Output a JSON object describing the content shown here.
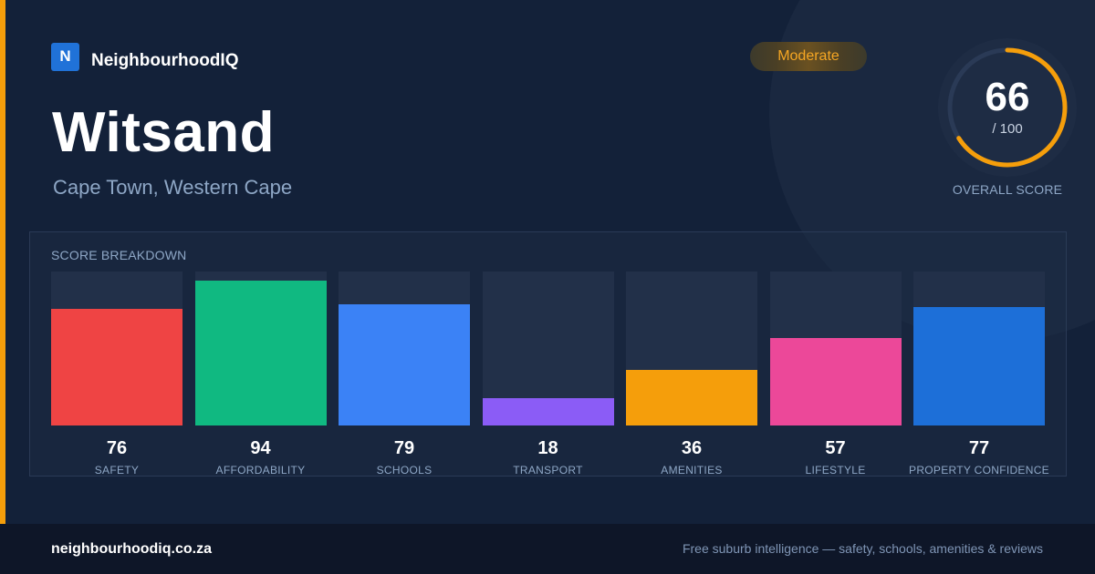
{
  "brand": {
    "logo_letter": "N",
    "name": "NeighbourhoodIQ"
  },
  "suburb": {
    "name": "Witsand",
    "location": "Cape Town, Western Cape"
  },
  "badge": {
    "label": "Moderate",
    "color": "#f5a623"
  },
  "overall": {
    "score": "66",
    "max": "/ 100",
    "label": "OVERALL SCORE",
    "fraction": 0.66,
    "ring_color": "#f59e0b"
  },
  "breakdown": {
    "title": "SCORE BREAKDOWN",
    "max": 100,
    "items": [
      {
        "label": "SAFETY",
        "value": "76",
        "score": 76,
        "color": "#ef4444"
      },
      {
        "label": "AFFORDABILITY",
        "value": "94",
        "score": 94,
        "color": "#10b981"
      },
      {
        "label": "SCHOOLS",
        "value": "79",
        "score": 79,
        "color": "#3b82f6"
      },
      {
        "label": "TRANSPORT",
        "value": "18",
        "score": 18,
        "color": "#8b5cf6"
      },
      {
        "label": "AMENITIES",
        "value": "36",
        "score": 36,
        "color": "#f59e0b"
      },
      {
        "label": "LIFESTYLE",
        "value": "57",
        "score": 57,
        "color": "#ec4899"
      },
      {
        "label": "PROPERTY CONFIDENCE",
        "value": "77",
        "score": 77,
        "color": "#1d6fd8"
      }
    ]
  },
  "footer": {
    "url": "neighbourhoodiq.co.za",
    "tagline": "Free suburb intelligence — safety, schools, amenities & reviews"
  }
}
